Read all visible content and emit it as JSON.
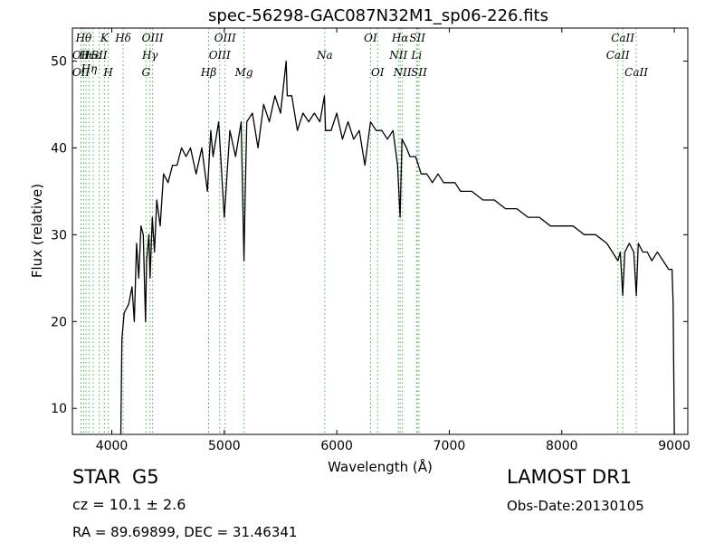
{
  "chart_data": {
    "type": "line",
    "title": "spec-56298-GAC087N32M1_sp06-226.fits",
    "xlabel": "Wavelength (Å)",
    "ylabel": "Flux (relative)",
    "xlim": [
      3650,
      9120
    ],
    "ylim": [
      7,
      53.8
    ],
    "xticks": [
      4000,
      5000,
      6000,
      7000,
      8000,
      9000
    ],
    "yticks": [
      10,
      20,
      30,
      40,
      50
    ],
    "grid": false,
    "line_color": "#000000",
    "marker_line_color": "#4caf50",
    "series": [
      {
        "x": [
          4080,
          4090,
          4110,
          4150,
          4180,
          4200,
          4220,
          4240,
          4260,
          4280,
          4300,
          4310,
          4330,
          4340,
          4360,
          4380,
          4400,
          4430,
          4460,
          4500,
          4540,
          4580,
          4620,
          4660,
          4700,
          4750,
          4800,
          4850,
          4880,
          4900,
          4950,
          5000,
          5050,
          5100,
          5150,
          5175,
          5185,
          5200,
          5250,
          5300,
          5350,
          5400,
          5450,
          5500,
          5550,
          5560,
          5600,
          5650,
          5700,
          5750,
          5800,
          5850,
          5890,
          5900,
          5950,
          6000,
          6050,
          6100,
          6150,
          6200,
          6250,
          6300,
          6350,
          6400,
          6450,
          6500,
          6540,
          6563,
          6580,
          6620,
          6650,
          6700,
          6750,
          6800,
          6850,
          6900,
          6950,
          7000,
          7050,
          7100,
          7200,
          7300,
          7400,
          7500,
          7600,
          7700,
          7800,
          7900,
          8000,
          8100,
          8200,
          8300,
          8400,
          8450,
          8498,
          8520,
          8542,
          8560,
          8600,
          8640,
          8662,
          8680,
          8720,
          8760,
          8800,
          8850,
          8900,
          8950,
          8980,
          8990,
          9000
        ],
        "y": [
          7,
          18,
          21,
          22,
          24,
          20,
          29,
          25,
          31,
          30,
          20,
          27,
          30,
          25,
          32,
          28,
          34,
          31,
          37,
          36,
          38,
          38,
          40,
          39,
          40,
          37,
          40,
          35,
          42,
          39,
          43,
          32,
          42,
          39,
          43,
          27,
          34,
          43,
          44,
          40,
          45,
          43,
          46,
          44,
          50,
          46,
          46,
          42,
          44,
          43,
          44,
          43,
          46,
          42,
          42,
          44,
          41,
          43,
          41,
          42,
          38,
          43,
          42,
          42,
          41,
          42,
          38,
          32,
          41,
          40,
          39,
          39,
          37,
          37,
          36,
          37,
          36,
          36,
          36,
          35,
          35,
          34,
          34,
          33,
          33,
          32,
          32,
          31,
          31,
          31,
          30,
          30,
          29,
          28,
          27,
          28,
          23,
          28,
          29,
          28,
          23,
          29,
          28,
          28,
          27,
          28,
          27,
          26,
          26,
          22,
          7
        ]
      }
    ],
    "lines": [
      {
        "wl": 3727,
        "row": 2,
        "label": "OII"
      },
      {
        "wl": 3727,
        "row": 3,
        "label": "OII"
      },
      {
        "wl": 3750,
        "row": 1,
        "label": "Hθ"
      },
      {
        "wl": 3771,
        "row": 2,
        "label": "Hι"
      },
      {
        "wl": 3798,
        "row": 2.8,
        "label": "Hη"
      },
      {
        "wl": 3835,
        "row": 2,
        "label": "Hε"
      },
      {
        "wl": 3889,
        "row": 2,
        "label": "SII"
      },
      {
        "wl": 3934,
        "row": 1,
        "label": "K"
      },
      {
        "wl": 3969,
        "row": 3,
        "label": "H"
      },
      {
        "wl": 4101,
        "row": 1,
        "label": "Hδ"
      },
      {
        "wl": 4304,
        "row": 3,
        "label": "G"
      },
      {
        "wl": 4340,
        "row": 2,
        "label": "Hγ"
      },
      {
        "wl": 4363,
        "row": 1,
        "label": "OIII"
      },
      {
        "wl": 4861,
        "row": 3,
        "label": "Hβ"
      },
      {
        "wl": 4959,
        "row": 2,
        "label": "OIII"
      },
      {
        "wl": 5007,
        "row": 1,
        "label": "OIII"
      },
      {
        "wl": 5175,
        "row": 3,
        "label": "Mg"
      },
      {
        "wl": 5893,
        "row": 2,
        "label": "Na"
      },
      {
        "wl": 6300,
        "row": 1,
        "label": "OI"
      },
      {
        "wl": 6363,
        "row": 3,
        "label": "OI"
      },
      {
        "wl": 6548,
        "row": 2,
        "label": "NII"
      },
      {
        "wl": 6563,
        "row": 1,
        "label": "Hα"
      },
      {
        "wl": 6583,
        "row": 3,
        "label": "NII"
      },
      {
        "wl": 6709,
        "row": 2,
        "label": "Li"
      },
      {
        "wl": 6716,
        "row": 1,
        "label": "SII"
      },
      {
        "wl": 6731,
        "row": 3,
        "label": "SII"
      },
      {
        "wl": 8498,
        "row": 2,
        "label": "CaII"
      },
      {
        "wl": 8542,
        "row": 1,
        "label": "CaII"
      },
      {
        "wl": 8662,
        "row": 3,
        "label": "CaII"
      }
    ]
  },
  "info": {
    "class_label": "STAR",
    "subclass": "G5",
    "survey": "LAMOST DR1",
    "cz": "cz = 10.1 ± 2.6",
    "obs_date": "Obs-Date:20130105",
    "coords": "RA = 89.69899, DEC = 31.46341"
  }
}
